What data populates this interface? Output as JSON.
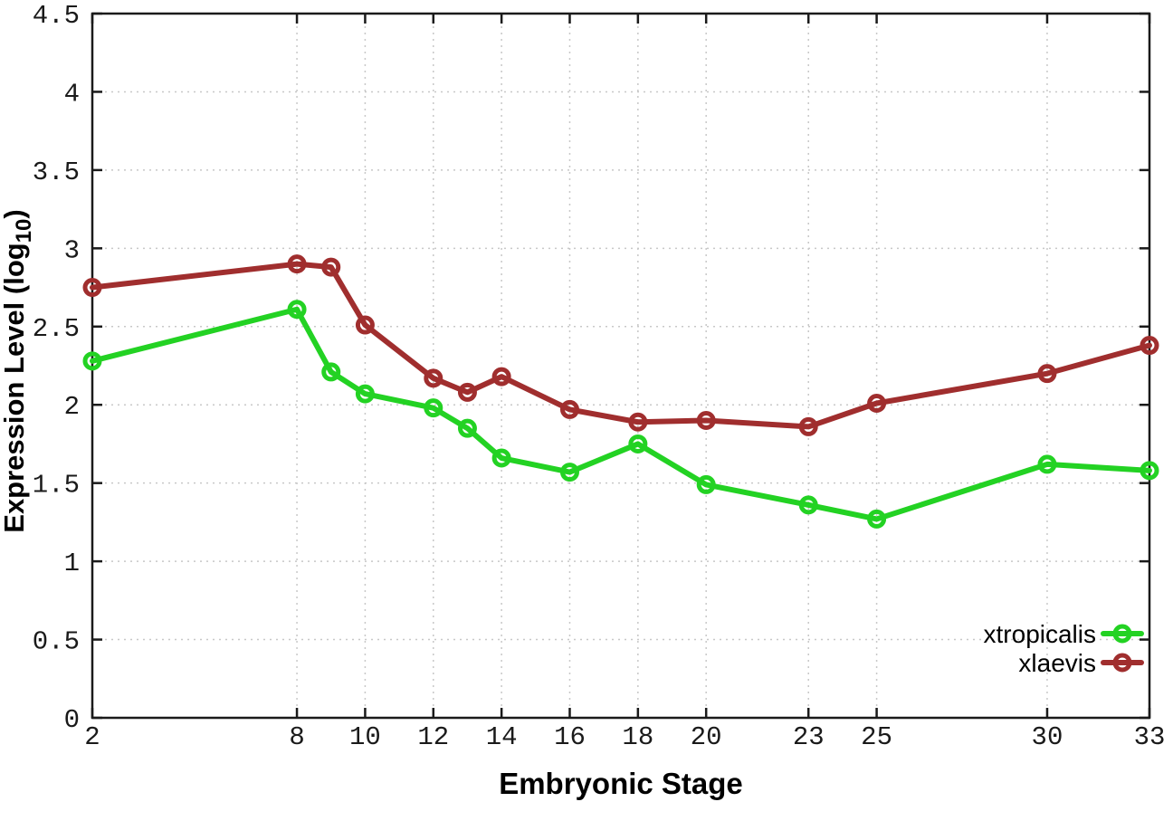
{
  "chart_data": {
    "type": "line",
    "title": "",
    "xlabel": "Embryonic Stage",
    "ylabel_prefix": "Expression Level (log",
    "ylabel_sub": "10",
    "ylabel_suffix": ")",
    "x": [
      2,
      8,
      9,
      10,
      12,
      13,
      14,
      16,
      18,
      20,
      23,
      25,
      30,
      33
    ],
    "series": [
      {
        "name": "xtropicalis",
        "color": "#23d223",
        "values": [
          2.28,
          2.61,
          2.21,
          2.07,
          1.98,
          1.85,
          1.66,
          1.57,
          1.75,
          1.49,
          1.36,
          1.27,
          1.62,
          1.58
        ]
      },
      {
        "name": "xlaevis",
        "color": "#a02e2e",
        "values": [
          2.75,
          2.9,
          2.88,
          2.51,
          2.17,
          2.08,
          2.18,
          1.97,
          1.89,
          1.9,
          1.86,
          2.01,
          2.2,
          2.38
        ]
      }
    ],
    "x_ticks": [
      2,
      8,
      10,
      12,
      14,
      16,
      18,
      20,
      23,
      25,
      30,
      33
    ],
    "y_ticks": [
      0,
      0.5,
      1,
      1.5,
      2,
      2.5,
      3,
      3.5,
      4,
      4.5
    ],
    "xlim": [
      2,
      33
    ],
    "ylim": [
      0,
      4.5
    ],
    "grid": true,
    "legend_position": "bottom-right",
    "marker": "open-circle",
    "colors": {
      "grid": "#c8c8c8",
      "axis": "#1a1a1a",
      "background": "#ffffff"
    }
  }
}
